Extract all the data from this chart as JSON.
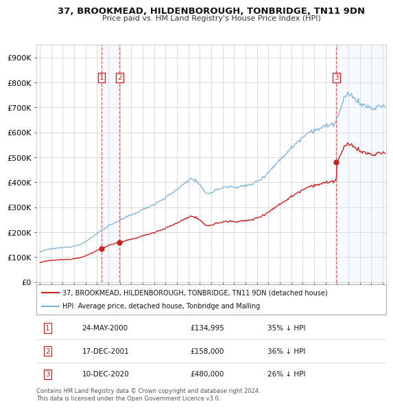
{
  "title": "37, BROOKMEAD, HILDENBOROUGH, TONBRIDGE, TN11 9DN",
  "subtitle": "Price paid vs. HM Land Registry's House Price Index (HPI)",
  "ylabel_ticks": [
    "£0",
    "£100K",
    "£200K",
    "£300K",
    "£400K",
    "£500K",
    "£600K",
    "£700K",
    "£800K",
    "£900K"
  ],
  "ytick_values": [
    0,
    100000,
    200000,
    300000,
    400000,
    500000,
    600000,
    700000,
    800000,
    900000
  ],
  "ylim": [
    0,
    950000
  ],
  "xlim_start": 1994.7,
  "xlim_end": 2025.3,
  "purchases": [
    {
      "label": "1",
      "year": 2000.39,
      "price": 134995,
      "color": "#cc2222"
    },
    {
      "label": "2",
      "year": 2001.96,
      "price": 158000,
      "color": "#cc2222"
    },
    {
      "label": "3",
      "year": 2020.94,
      "price": 480000,
      "color": "#cc2222"
    }
  ],
  "purchase_table": [
    {
      "num": "1",
      "date": "24-MAY-2000",
      "price": "£134,995",
      "pct": "35% ↓ HPI"
    },
    {
      "num": "2",
      "date": "17-DEC-2001",
      "price": "£158,000",
      "pct": "36% ↓ HPI"
    },
    {
      "num": "3",
      "date": "10-DEC-2020",
      "price": "£480,000",
      "pct": "26% ↓ HPI"
    }
  ],
  "legend_house": "37, BROOKMEAD, HILDENBOROUGH, TONBRIDGE, TN11 9DN (detached house)",
  "legend_hpi": "HPI: Average price, detached house, Tonbridge and Malling",
  "footer": "Contains HM Land Registry data © Crown copyright and database right 2024.\nThis data is licensed under the Open Government Licence v3.0.",
  "house_color": "#cc2222",
  "hpi_color": "#7ab0d4",
  "bg_color": "#ffffff",
  "grid_color": "#cccccc",
  "shade_color": "#ddeeff"
}
